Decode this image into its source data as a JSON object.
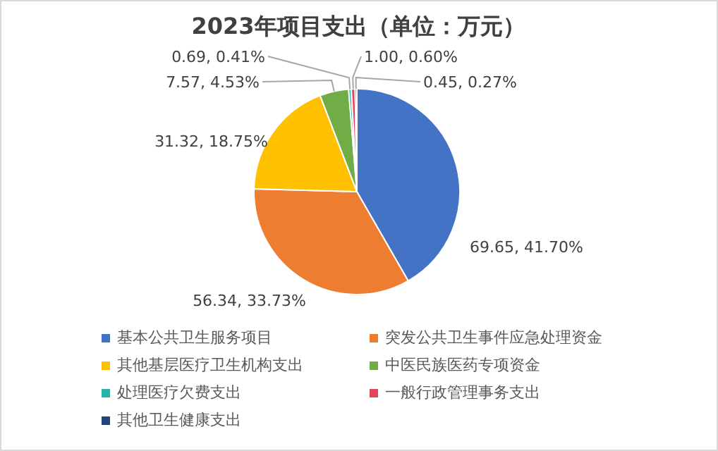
{
  "chart_data": {
    "type": "pie",
    "title": "2023年项目支出（单位：万元）",
    "categories": [
      "基本公共卫生服务项目",
      "突发公共卫生事件应急处理资金",
      "其他基层医疗卫生机构支出",
      "中医民族医药专项资金",
      "处理医疗欠费支出",
      "一般行政管理事务支出",
      "其他卫生健康支出"
    ],
    "values": [
      69.65,
      56.34,
      31.32,
      7.57,
      0.69,
      1.0,
      0.45
    ],
    "value_labels": [
      "69.65, 41.70%",
      "56.34, 33.73%",
      "31.32, 18.75%",
      "7.57, 4.53%",
      "0.69, 0.41%",
      "1.00, 0.60%",
      "0.45, 0.27%"
    ],
    "colors": [
      "#4472c4",
      "#ed7d31",
      "#ffc000",
      "#70ad47",
      "#26b5a8",
      "#e0475b",
      "#264478"
    ],
    "legend": "bottom"
  }
}
